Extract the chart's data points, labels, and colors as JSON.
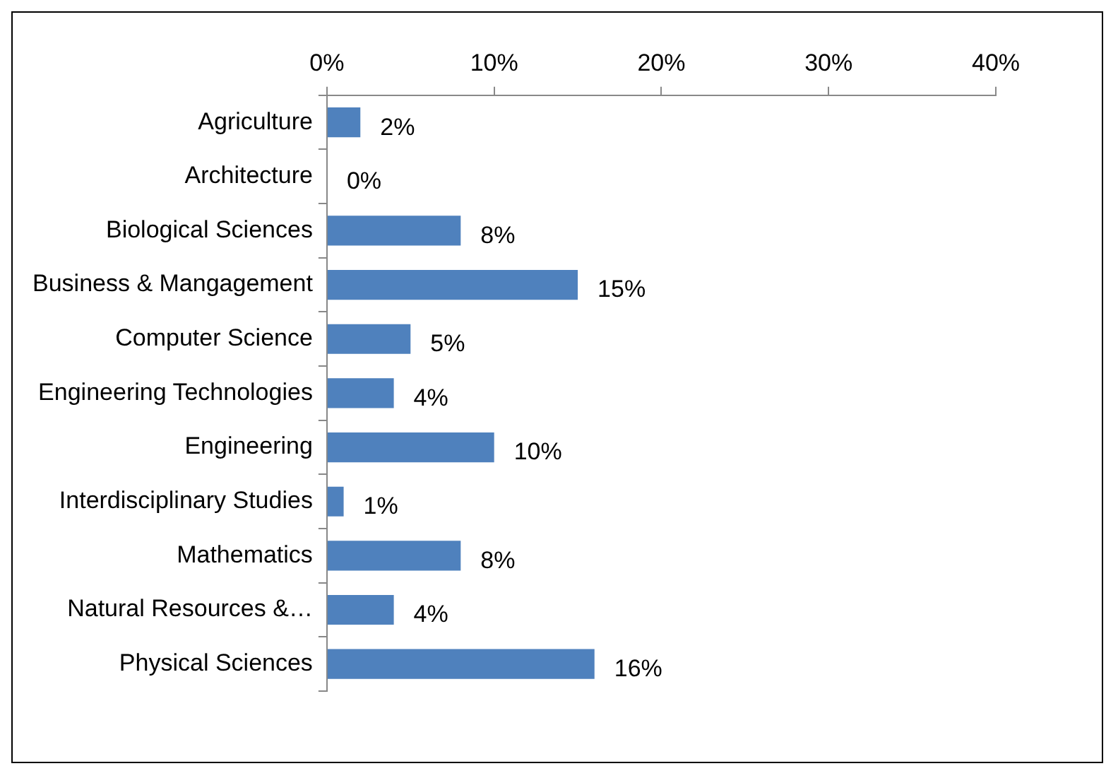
{
  "chart_data": {
    "type": "bar",
    "orientation": "horizontal",
    "categories": [
      "Agriculture",
      "Architecture",
      "Biological Sciences",
      "Business & Mangagement",
      "Computer Science",
      "Engineering Technologies",
      "Engineering",
      "Interdisciplinary Studies",
      "Mathematics",
      "Natural Resources &…",
      "Physical Sciences"
    ],
    "values": [
      2,
      0,
      8,
      15,
      5,
      4,
      10,
      1,
      8,
      4,
      16
    ],
    "color": "#4f81bd",
    "xlim": [
      0,
      40
    ],
    "xticks": [
      {
        "value": 0,
        "label": "0%"
      },
      {
        "value": 10,
        "label": "10%"
      },
      {
        "value": 20,
        "label": "20%"
      },
      {
        "value": 30,
        "label": "30%"
      },
      {
        "value": 40,
        "label": "40%"
      }
    ],
    "value_labels": [
      "2%",
      "0%",
      "8%",
      "15%",
      "5%",
      "4%",
      "10%",
      "1%",
      "8%",
      "4%",
      "16%"
    ],
    "grid": false,
    "legend": false
  }
}
